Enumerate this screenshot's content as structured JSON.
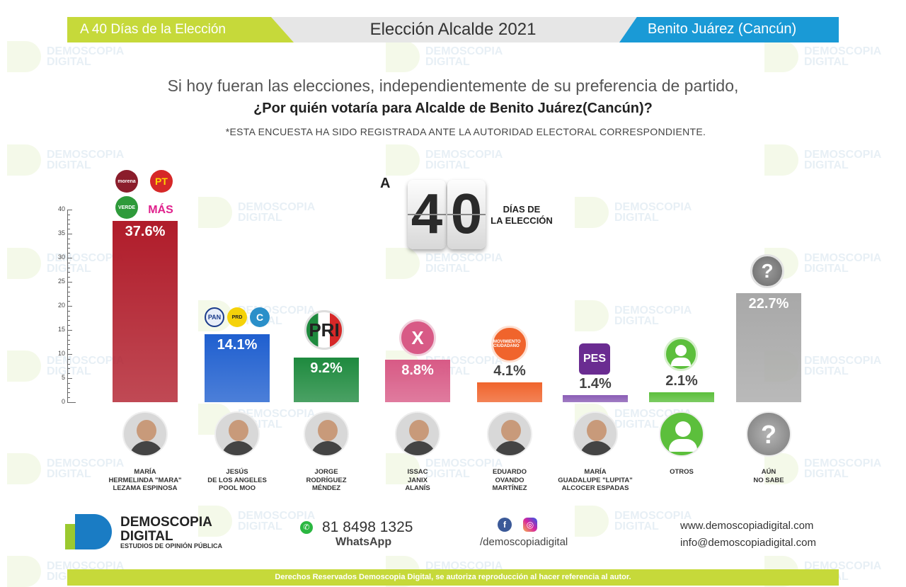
{
  "header": {
    "left": "A 40 Días de la Elección",
    "center": "Elección Alcalde 2021",
    "right": "Benito Juárez (Cancún)"
  },
  "question": {
    "line1": "Si hoy fueran las elecciones, independientemente de su preferencia de partido,",
    "line2": "¿Por quién votaría para Alcalde de Benito Juárez(Cancún)?",
    "note": "*ESTA ENCUESTA HA SIDO REGISTRADA ANTE LA AUTORIDAD ELECTORAL CORRESPONDIENTE."
  },
  "badge": {
    "prefix": "A",
    "digit1": "4",
    "digit2": "0",
    "line1": "DÍAS DE",
    "line2": "LA ELECCIÓN"
  },
  "chart_data": {
    "type": "bar",
    "ylim": [
      0,
      40
    ],
    "yticks": [
      0,
      5,
      10,
      15,
      20,
      25,
      30,
      35,
      40
    ],
    "categories": [
      "MARÍA HERMELINDA \"MARA\" LEZAMA ESPINOSA",
      "JESÚS DE LOS ANGELES POOL MOO",
      "JORGE RODRÍGUEZ MÉNDEZ",
      "ISSAC JANIX ALANÍS",
      "EDUARDO OVANDO MARTÍNEZ",
      "MARÍA GUADALUPE \"LUPITA\" ALCOCER ESPADAS",
      "OTROS",
      "AÚN NO SABE"
    ],
    "values": [
      37.6,
      14.1,
      9.2,
      8.8,
      4.1,
      1.4,
      2.1,
      22.7
    ],
    "value_labels": [
      "37.6%",
      "14.1%",
      "9.2%",
      "8.8%",
      "4.1%",
      "1.4%",
      "2.1%",
      "22.7%"
    ],
    "colors": [
      "#b01c2a",
      "#1f5fcf",
      "#1e8a3e",
      "#d85a86",
      "#f0642c",
      "#8a5cb5",
      "#5cbf3c",
      "#a8a8a8"
    ],
    "grid": false,
    "legend": "none"
  },
  "candidates": [
    {
      "name_lines": [
        "MARÍA",
        "HERMELINDA \"MARA\"",
        "LEZAMA ESPINOSA"
      ],
      "parties": [
        "morena",
        "PT",
        "VERDE",
        "MÁS"
      ]
    },
    {
      "name_lines": [
        "JESÚS",
        "DE LOS ANGELES",
        "POOL MOO"
      ],
      "parties": [
        "PAN",
        "PRD",
        "C"
      ]
    },
    {
      "name_lines": [
        "JORGE",
        "RODRÍGUEZ",
        "MÉNDEZ"
      ],
      "parties": [
        "PRI"
      ]
    },
    {
      "name_lines": [
        "ISSAC",
        "JANIX",
        "ALANÍS"
      ],
      "parties": [
        "X"
      ]
    },
    {
      "name_lines": [
        "EDUARDO",
        "OVANDO",
        "MARTÍNEZ"
      ],
      "parties": [
        "MOVIMIENTO CIUDADANO"
      ]
    },
    {
      "name_lines": [
        "MARÍA",
        "GUADALUPE \"LUPITA\"",
        "ALCOCER ESPADAS"
      ],
      "parties": [
        "PES"
      ]
    },
    {
      "name_lines": [
        "OTROS"
      ],
      "parties": []
    },
    {
      "name_lines": [
        "AÚN",
        "NO SABE"
      ],
      "parties": []
    }
  ],
  "watermark": {
    "line1": "DEMOSCOPIA",
    "line2": "DIGITAL"
  },
  "footer": {
    "brand_line1": "DEMOSCOPIA",
    "brand_line2": "DIGITAL",
    "brand_tagline": "ESTUDIOS DE OPINIÓN PÚBLICA",
    "phone": "81 8498 1325",
    "whatsapp": "WhatsApp",
    "social_handle": "/demoscopiadigital",
    "website": "www.demoscopiadigital.com",
    "email": "info@demoscopiadigital.com",
    "rights": "Derechos Reservados Demoscopia Digital, se autoriza reproducción al hacer referencia al autor."
  }
}
